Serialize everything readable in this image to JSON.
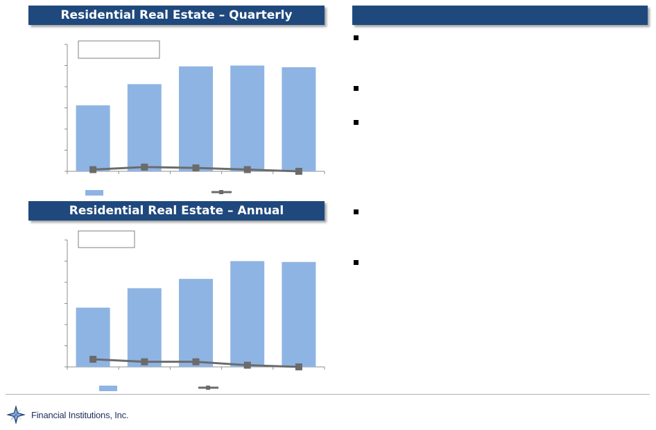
{
  "quarterly": {
    "title": "Residential Real Estate – Quarterly",
    "chart_data": {
      "type": "bar",
      "categories": [
        "",
        "",
        "",
        "",
        ""
      ],
      "series": [
        {
          "kind": "bar",
          "color": "#8eb4e3",
          "values": [
            3.9,
            5.15,
            6.2,
            6.25,
            6.15
          ]
        },
        {
          "kind": "line",
          "color": "#6b6b6b",
          "values": [
            0.1,
            0.25,
            0.2,
            0.1,
            0.0
          ]
        }
      ],
      "ylim": [
        0,
        7.5
      ],
      "gridlines": false,
      "ticks": 6
    }
  },
  "annual": {
    "title": "Residential Real Estate – Annual",
    "chart_data": {
      "type": "bar",
      "categories": [
        "",
        "",
        "",
        "",
        ""
      ],
      "series": [
        {
          "kind": "bar",
          "color": "#8eb4e3",
          "values": [
            3.5,
            4.65,
            5.2,
            6.25,
            6.2
          ]
        },
        {
          "kind": "line",
          "color": "#6b6b6b",
          "values": [
            0.45,
            0.3,
            0.3,
            0.1,
            0.0
          ]
        }
      ],
      "ylim": [
        0,
        7.5
      ],
      "gridlines": false,
      "ticks": 6
    }
  },
  "right_panel": {
    "title": ""
  },
  "footer": {
    "company": "Financial Institutions, Inc."
  },
  "colors": {
    "header": "#1f497d",
    "bar": "#8eb4e3",
    "line": "#6b6b6b"
  }
}
